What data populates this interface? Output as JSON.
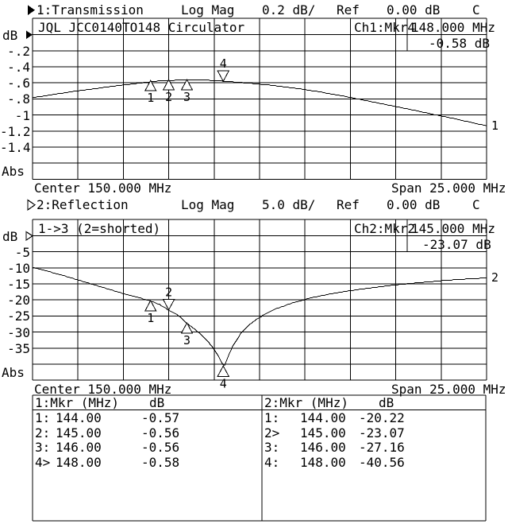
{
  "channel1": {
    "status": {
      "channel": "1:Transmission",
      "format": "Log Mag",
      "scale": "0.2 dB/",
      "ref_label": "Ref",
      "ref_value": "0.00 dB",
      "cal_indicator": "C"
    },
    "title": "JQL JCC0140TO148 Circulator",
    "marker_readout": {
      "label": "Ch1:Mkr4",
      "frequency": "148.000 MHz",
      "value": "-0.58 dB"
    },
    "axis": {
      "unit": "dB",
      "ticks": [
        "-.2",
        "-.4",
        "-.6",
        "-.8",
        "-1",
        "-1.2",
        "-1.4"
      ],
      "abs_label": "Abs"
    },
    "center": "Center 150.000 MHz",
    "span": "Span 25.000 MHz"
  },
  "channel2": {
    "status": {
      "channel": "2:Reflection",
      "format": "Log Mag",
      "scale": "5.0 dB/",
      "ref_label": "Ref",
      "ref_value": "0.00 dB",
      "cal_indicator": "C"
    },
    "title": "1->3 (2=shorted)",
    "marker_readout": {
      "label": "Ch2:Mkr2",
      "frequency": "145.000 MHz",
      "value": "-23.07 dB"
    },
    "axis": {
      "unit": "dB",
      "ticks": [
        "-5",
        "-10",
        "-15",
        "-20",
        "-25",
        "-30",
        "-35"
      ],
      "abs_label": "Abs"
    },
    "center": "Center 150.000 MHz",
    "span": "Span 25.000 MHz"
  },
  "marker_table": {
    "left": {
      "header": "1:Mkr (MHz)",
      "unit": "dB",
      "rows": [
        [
          "1:",
          "144.00",
          "-0.57"
        ],
        [
          "2:",
          "145.00",
          "-0.56"
        ],
        [
          "3:",
          "146.00",
          "-0.56"
        ],
        [
          "4>",
          "148.00",
          "-0.58"
        ]
      ]
    },
    "right": {
      "header": "2:Mkr (MHz)",
      "unit": "dB",
      "rows": [
        [
          "1:",
          "144.00",
          "-20.22"
        ],
        [
          "2>",
          "145.00",
          "-23.07"
        ],
        [
          "3:",
          "146.00",
          "-27.16"
        ],
        [
          "4:",
          "148.00",
          "-40.56"
        ]
      ]
    }
  },
  "chart_data": [
    {
      "type": "line",
      "title": "Transmission",
      "xlabel": "MHz",
      "ylabel": "dB",
      "x_start": 137.5,
      "x_stop": 162.5,
      "center_mhz": 150.0,
      "span_mhz": 25.0,
      "ref_db": 0.0,
      "db_per_div": 0.2,
      "n_divisions": 9,
      "n_columns": 10,
      "grid": true,
      "trace_label": "1",
      "x": [
        137.5,
        138.5,
        139.5,
        140.5,
        141.5,
        142.5,
        143.5,
        144.5,
        145.5,
        146.5,
        147.5,
        148.5,
        149.5,
        150.5,
        151.5,
        152.5,
        153.5,
        154.5,
        155.5,
        156.5,
        157.5,
        158.5,
        159.5,
        160.5,
        161.5,
        162.5
      ],
      "y": [
        -0.78,
        -0.745,
        -0.71,
        -0.68,
        -0.65,
        -0.622,
        -0.595,
        -0.57,
        -0.562,
        -0.558,
        -0.565,
        -0.582,
        -0.6,
        -0.622,
        -0.648,
        -0.678,
        -0.715,
        -0.755,
        -0.8,
        -0.845,
        -0.89,
        -0.935,
        -0.985,
        -1.03,
        -1.08,
        -1.13
      ],
      "markers": [
        {
          "n": "1",
          "mhz": 144.0,
          "db": -0.57,
          "active": false
        },
        {
          "n": "2",
          "mhz": 145.0,
          "db": -0.56,
          "active": false
        },
        {
          "n": "3",
          "mhz": 146.0,
          "db": -0.56,
          "active": false
        },
        {
          "n": "4",
          "mhz": 148.0,
          "db": -0.58,
          "active": true
        }
      ]
    },
    {
      "type": "line",
      "title": "Reflection",
      "xlabel": "MHz",
      "ylabel": "dB",
      "x_start": 137.5,
      "x_stop": 162.5,
      "center_mhz": 150.0,
      "span_mhz": 25.0,
      "ref_db": 0.0,
      "db_per_div": 5.0,
      "n_divisions": 9,
      "n_columns": 10,
      "grid": true,
      "trace_label": "2",
      "x": [
        137.5,
        138.5,
        139.5,
        140.5,
        141.5,
        142.5,
        143.5,
        144.0,
        144.5,
        145.0,
        145.5,
        146.0,
        146.5,
        147.0,
        147.4,
        147.7,
        147.9,
        148.05,
        148.2,
        148.5,
        149.0,
        149.5,
        150.0,
        150.5,
        151.0,
        152.0,
        153.0,
        154.0,
        155.0,
        156.0,
        157.0,
        158.0,
        159.0,
        160.0,
        161.0,
        162.5
      ],
      "y": [
        -9.8,
        -11.2,
        -12.8,
        -14.5,
        -16.2,
        -17.9,
        -19.4,
        -20.22,
        -21.3,
        -23.07,
        -24.6,
        -27.16,
        -29.3,
        -31.8,
        -34.5,
        -37.0,
        -39.2,
        -40.56,
        -38.5,
        -34.5,
        -30.0,
        -27.3,
        -25.3,
        -23.8,
        -22.4,
        -20.5,
        -19.0,
        -17.9,
        -17.0,
        -16.2,
        -15.5,
        -14.9,
        -14.4,
        -13.9,
        -13.5,
        -13.0
      ],
      "markers": [
        {
          "n": "1",
          "mhz": 144.0,
          "db": -20.22,
          "active": false
        },
        {
          "n": "2",
          "mhz": 145.0,
          "db": -23.07,
          "active": true
        },
        {
          "n": "3",
          "mhz": 146.0,
          "db": -27.16,
          "active": false
        },
        {
          "n": "4",
          "mhz": 148.0,
          "db": -40.56,
          "active": false
        }
      ]
    }
  ]
}
